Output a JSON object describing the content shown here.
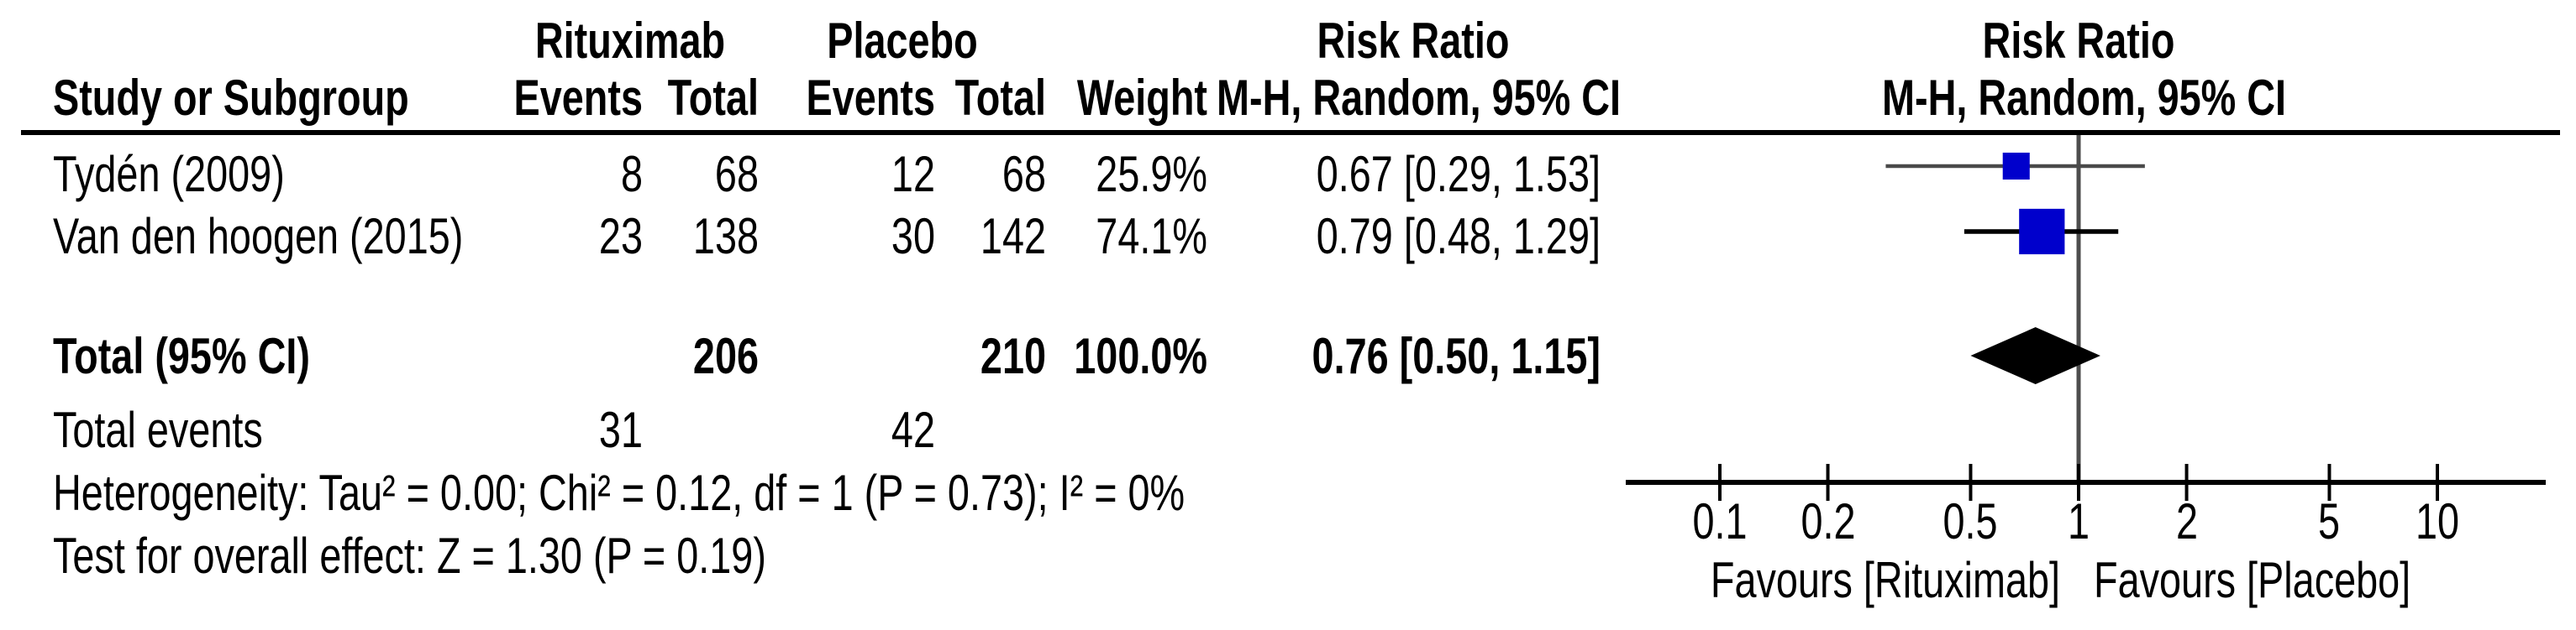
{
  "table": {
    "group_headers": {
      "treatment": "Rituximab",
      "control": "Placebo",
      "stat_col_title": "Risk Ratio",
      "plot_col_title": "Risk Ratio"
    },
    "col_headers": {
      "study": "Study or Subgroup",
      "events1": "Events",
      "total1": "Total",
      "events2": "Events",
      "total2": "Total",
      "weight": "Weight",
      "stat_ci": "M-H, Random, 95% CI",
      "plot_ci": "M-H, Random, 95% CI"
    },
    "rows": [
      {
        "study": "Tydén (2009)",
        "events1": "8",
        "total1": "68",
        "events2": "12",
        "total2": "68",
        "weight": "25.9%",
        "ci": "0.67 [0.29, 1.53]"
      },
      {
        "study": "Van den hoogen (2015)",
        "events1": "23",
        "total1": "138",
        "events2": "30",
        "total2": "142",
        "weight": "74.1%",
        "ci": "0.79 [0.48, 1.29]"
      }
    ],
    "total_row": {
      "label": "Total (95% CI)",
      "total1": "206",
      "total2": "210",
      "weight": "100.0%",
      "ci": "0.76 [0.50, 1.15]"
    },
    "total_events": {
      "label": "Total events",
      "events1": "31",
      "events2": "42"
    },
    "heterogeneity": "Heterogeneity: Tau² = 0.00; Chi² = 0.12, df = 1 (P = 0.73); I² = 0%",
    "overall_effect": "Test for overall effect: Z = 1.30 (P = 0.19)"
  },
  "chart_data": {
    "type": "forest",
    "x_scale": "log10",
    "axis_range": [
      0.055,
      20
    ],
    "axis_ticks": [
      0.1,
      0.2,
      0.5,
      1,
      2,
      5,
      10
    ],
    "tick_labels": [
      "0.1",
      "0.2",
      "0.5",
      "1",
      "2",
      "5",
      "10"
    ],
    "null_line_value": 1,
    "studies": [
      {
        "name": "Tydén (2009)",
        "rr": 0.67,
        "ci_low": 0.29,
        "ci_high": 1.53,
        "weight_pct": 25.9
      },
      {
        "name": "Van den hoogen (2015)",
        "rr": 0.79,
        "ci_low": 0.48,
        "ci_high": 1.29,
        "weight_pct": 74.1
      }
    ],
    "total": {
      "rr": 0.76,
      "ci_low": 0.5,
      "ci_high": 1.15
    },
    "favours_left": "Favours [Rituximab]",
    "favours_right": "Favours [Placebo]",
    "colors": {
      "square": "#0000CC",
      "diamond": "#000000",
      "null_line": "#4d4d4d",
      "ci_line": "#000000",
      "axis": "#000000"
    }
  }
}
